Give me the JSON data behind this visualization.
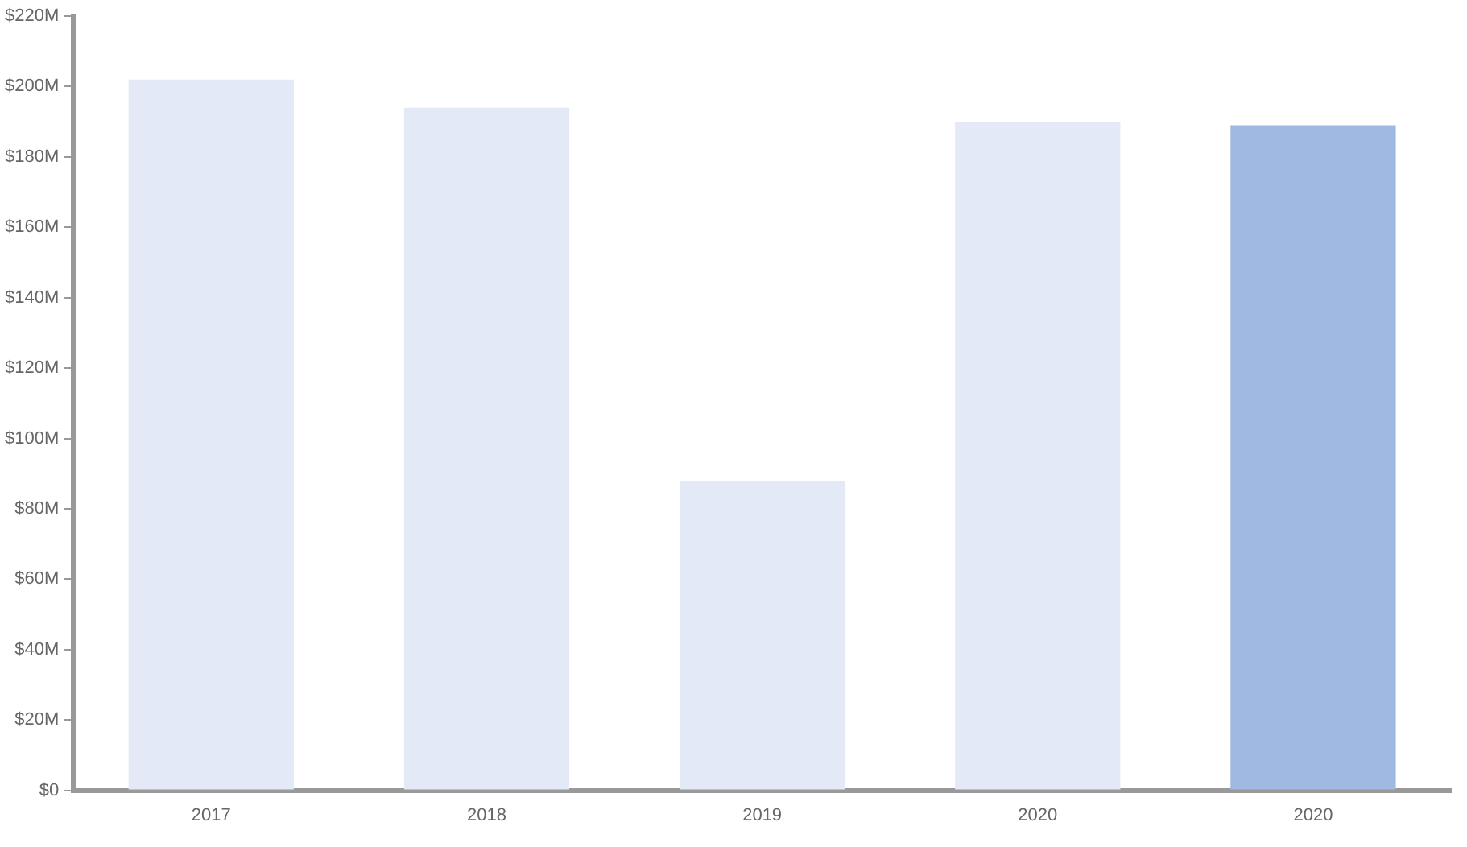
{
  "chart_data": {
    "type": "bar",
    "categories": [
      "2017",
      "2018",
      "2019",
      "2020",
      "2020"
    ],
    "values": [
      202,
      194,
      88,
      190,
      189
    ],
    "colors": [
      "#e3e9f6",
      "#e3e9f6",
      "#e3e9f6",
      "#e3e9f6",
      "#a0b9e2"
    ],
    "ylim": [
      0,
      220
    ],
    "yticks": [
      {
        "value": 0,
        "label": "$0"
      },
      {
        "value": 20,
        "label": "$20M"
      },
      {
        "value": 40,
        "label": "$40M"
      },
      {
        "value": 60,
        "label": "$60M"
      },
      {
        "value": 80,
        "label": "$80M"
      },
      {
        "value": 100,
        "label": "$100M"
      },
      {
        "value": 120,
        "label": "$120M"
      },
      {
        "value": 140,
        "label": "$140M"
      },
      {
        "value": 160,
        "label": "$160M"
      },
      {
        "value": 180,
        "label": "$180M"
      },
      {
        "value": 200,
        "label": "$200M"
      },
      {
        "value": 220,
        "label": "$220M"
      }
    ],
    "grid": false,
    "legend": false
  }
}
